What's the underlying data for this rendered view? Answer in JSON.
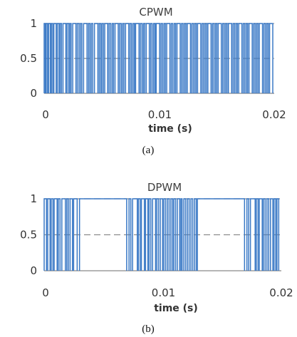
{
  "chart_data": [
    {
      "type": "line",
      "title": "CPWM",
      "xlabel": "time (s)",
      "ylabel": "",
      "caption": "(a)",
      "xlim": [
        0,
        0.02
      ],
      "ylim": [
        0,
        1
      ],
      "xticks": [
        "0",
        "0.01",
        "0.02"
      ],
      "xtick_values": [
        0,
        0.01,
        0.02
      ],
      "yticks": [
        "1",
        "0.5",
        "0"
      ],
      "ytick_values": [
        1,
        0.5,
        0
      ],
      "grid": "horizontal dashed",
      "line_color": "#3a79c6",
      "series": [
        {
          "pulses": [
            [
              0.0,
              0.0001
            ],
            [
              0.00018,
              0.0003
            ],
            [
              0.0004,
              0.00055
            ],
            [
              0.00063,
              0.00075
            ],
            [
              0.00085,
              0.00105
            ],
            [
              0.00115,
              0.0013
            ],
            [
              0.0014,
              0.00152
            ],
            [
              0.00165,
              0.0019
            ],
            [
              0.002,
              0.00215
            ],
            [
              0.00225,
              0.00236
            ],
            [
              0.0025,
              0.00278
            ],
            [
              0.0029,
              0.00305
            ],
            [
              0.00318,
              0.0033
            ],
            [
              0.00345,
              0.00375
            ],
            [
              0.00388,
              0.004
            ],
            [
              0.00412,
              0.00425
            ],
            [
              0.0044,
              0.0047
            ],
            [
              0.00482,
              0.00495
            ],
            [
              0.00505,
              0.00518
            ],
            [
              0.0053,
              0.00556
            ],
            [
              0.00568,
              0.00582
            ],
            [
              0.00595,
              0.00607
            ],
            [
              0.0062,
              0.00648
            ],
            [
              0.0066,
              0.00674
            ],
            [
              0.00686,
              0.00698
            ],
            [
              0.00712,
              0.0074
            ],
            [
              0.00752,
              0.00765
            ],
            [
              0.00778,
              0.0079
            ],
            [
              0.008,
              0.0083
            ],
            [
              0.00842,
              0.00856
            ],
            [
              0.00868,
              0.0088
            ],
            [
              0.00893,
              0.0092
            ],
            [
              0.00932,
              0.00945
            ],
            [
              0.00958,
              0.0097
            ],
            [
              0.0098,
              0.0101
            ],
            [
              0.01022,
              0.01035
            ],
            [
              0.01048,
              0.0106
            ],
            [
              0.01072,
              0.011
            ],
            [
              0.01112,
              0.01125
            ],
            [
              0.01138,
              0.0115
            ],
            [
              0.01162,
              0.0119
            ],
            [
              0.01202,
              0.01215
            ],
            [
              0.01228,
              0.0124
            ],
            [
              0.01252,
              0.0128
            ],
            [
              0.01292,
              0.01305
            ],
            [
              0.01318,
              0.0133
            ],
            [
              0.01342,
              0.0137
            ],
            [
              0.01382,
              0.01395
            ],
            [
              0.01408,
              0.0142
            ],
            [
              0.01432,
              0.0146
            ],
            [
              0.01472,
              0.01485
            ],
            [
              0.01498,
              0.0151
            ],
            [
              0.01522,
              0.0155
            ],
            [
              0.01562,
              0.01575
            ],
            [
              0.01588,
              0.016
            ],
            [
              0.01612,
              0.0164
            ],
            [
              0.01652,
              0.01665
            ],
            [
              0.01678,
              0.0169
            ],
            [
              0.01702,
              0.0173
            ],
            [
              0.01742,
              0.01755
            ],
            [
              0.01768,
              0.0178
            ],
            [
              0.01792,
              0.0182
            ],
            [
              0.01832,
              0.01845
            ],
            [
              0.01858,
              0.0187
            ],
            [
              0.01882,
              0.0191
            ],
            [
              0.01922,
              0.01935
            ],
            [
              0.01948,
              0.0196
            ],
            [
              0.01972,
              0.02
            ]
          ]
        }
      ]
    },
    {
      "type": "line",
      "title": "DPWM",
      "xlabel": "time (s)",
      "ylabel": "",
      "caption": "(b)",
      "xlim": [
        0,
        0.02
      ],
      "ylim": [
        0,
        1
      ],
      "xticks": [
        "0",
        "0.01",
        "0.02"
      ],
      "xtick_values": [
        0,
        0.01,
        0.02
      ],
      "yticks": [
        "1",
        "0.5",
        "0"
      ],
      "ytick_values": [
        1,
        0.5,
        0
      ],
      "grid": "horizontal dashed",
      "line_color": "#3a79c6",
      "series": [
        {
          "pulses": [
            [
              0.0,
              0.0002
            ],
            [
              0.0003,
              0.0005
            ],
            [
              0.0006,
              0.00075
            ],
            [
              0.00085,
              0.0011
            ],
            [
              0.0012,
              0.00135
            ],
            [
              0.0015,
              0.0018
            ],
            [
              0.00192,
              0.00205
            ],
            [
              0.0022,
              0.0024
            ],
            [
              0.0025,
              0.0028
            ],
            [
              0.003,
              0.007
            ],
            [
              0.0072,
              0.00735
            ],
            [
              0.0075,
              0.0079
            ],
            [
              0.008,
              0.00815
            ],
            [
              0.00825,
              0.0085
            ],
            [
              0.0086,
              0.0088
            ],
            [
              0.0089,
              0.00905
            ],
            [
              0.0092,
              0.00945
            ],
            [
              0.00955,
              0.0097
            ],
            [
              0.00985,
              0.01005
            ],
            [
              0.01015,
              0.0103
            ],
            [
              0.01045,
              0.0106
            ],
            [
              0.01075,
              0.0109
            ],
            [
              0.011,
              0.01115
            ],
            [
              0.0113,
              0.0115
            ],
            [
              0.0116,
              0.0117
            ],
            [
              0.01185,
              0.012
            ],
            [
              0.01215,
              0.0123
            ],
            [
              0.01245,
              0.0126
            ],
            [
              0.01275,
              0.0129
            ],
            [
              0.013,
              0.017
            ],
            [
              0.0172,
              0.01735
            ],
            [
              0.0175,
              0.0179
            ],
            [
              0.018,
              0.01815
            ],
            [
              0.01825,
              0.0185
            ],
            [
              0.0186,
              0.01875
            ],
            [
              0.0189,
              0.01905
            ],
            [
              0.0192,
              0.0194
            ],
            [
              0.0195,
              0.01965
            ],
            [
              0.01975,
              0.0199
            ]
          ]
        }
      ]
    }
  ]
}
